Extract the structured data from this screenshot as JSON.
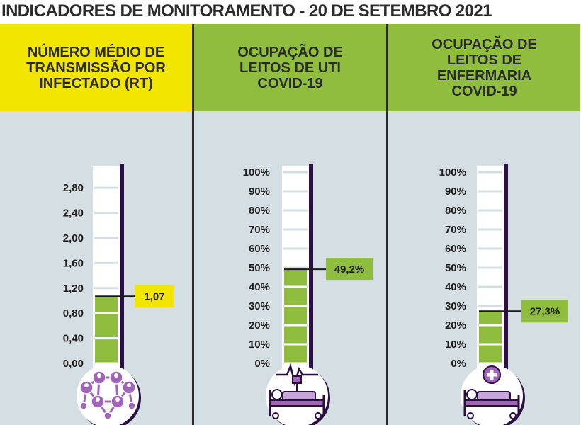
{
  "title": "INDICADORES DE MONITORAMENTO - 20 DE SETEMBRO 2021",
  "colors": {
    "yellow": "#f2e500",
    "green": "#8fbe3e",
    "panel_bg": "#d5dfe3",
    "purple": "#a064b8",
    "dark_purple": "#2a1040"
  },
  "panels": [
    {
      "heading": "NÚMERO MÉDIO DE\nTRANSMISSÃO POR\nINFECTADO (RT)",
      "header_color": "#f2e500",
      "icon": "people-network-icon"
    },
    {
      "heading": "OCUPAÇÃO DE\nLEITOS DE UTI\nCOVID-19",
      "header_color": "#8fbe3e",
      "icon": "icu-bed-monitor-icon"
    },
    {
      "heading": "OCUPAÇÃO DE\nLEITOS DE\nENFERMARIA\nCOVID-19",
      "header_color": "#8fbe3e",
      "icon": "ward-bed-cross-icon"
    }
  ],
  "chart_data": [
    {
      "type": "bar",
      "title": "NÚMERO MÉDIO DE TRANSMISSÃO POR INFECTADO (RT)",
      "categories": [
        "RT"
      ],
      "values": [
        1.07
      ],
      "value_label": "1,07",
      "ylim": [
        0,
        3.05
      ],
      "yticks": [
        0,
        0.4,
        0.8,
        1.2,
        1.6,
        2.0,
        2.4,
        2.8
      ],
      "ytick_labels": [
        "0,00",
        "0,40",
        "0,80",
        "1,20",
        "1,60",
        "2,00",
        "2,40",
        "2,80"
      ],
      "fill_color": "#8fbe3e",
      "label_color": "#f2e500"
    },
    {
      "type": "bar",
      "title": "OCUPAÇÃO DE LEITOS DE UTI COVID-19",
      "categories": [
        "UTI"
      ],
      "values": [
        49.2
      ],
      "value_label": "49,2%",
      "ylim": [
        0,
        100
      ],
      "yticks": [
        0,
        10,
        20,
        30,
        40,
        50,
        60,
        70,
        80,
        90,
        100
      ],
      "ytick_labels": [
        "0%",
        "10%",
        "20%",
        "30%",
        "40%",
        "50%",
        "60%",
        "70%",
        "80%",
        "90%",
        "100%"
      ],
      "fill_color": "#8fbe3e",
      "label_color": "#8fbe3e"
    },
    {
      "type": "bar",
      "title": "OCUPAÇÃO DE LEITOS DE ENFERMARIA COVID-19",
      "categories": [
        "ENFERMARIA"
      ],
      "values": [
        27.3
      ],
      "value_label": "27,3%",
      "ylim": [
        0,
        100
      ],
      "yticks": [
        0,
        10,
        20,
        30,
        40,
        50,
        60,
        70,
        80,
        90,
        100
      ],
      "ytick_labels": [
        "0%",
        "10%",
        "20%",
        "30%",
        "40%",
        "50%",
        "60%",
        "70%",
        "80%",
        "90%",
        "100%"
      ],
      "fill_color": "#8fbe3e",
      "label_color": "#8fbe3e"
    }
  ]
}
